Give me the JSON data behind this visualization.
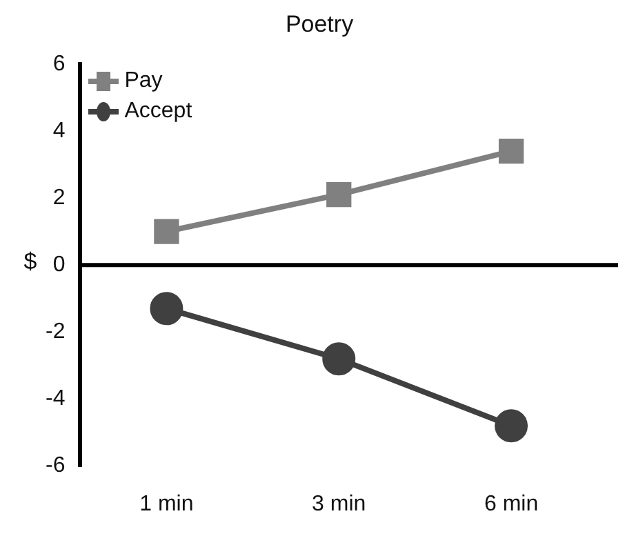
{
  "chart_data": {
    "type": "line",
    "title": "Poetry",
    "ylabel": "$",
    "categories": [
      "1 min",
      "3 min",
      "6 min"
    ],
    "series": [
      {
        "name": "Pay",
        "color": "#808080",
        "marker": "square",
        "values": [
          1.0,
          2.1,
          3.4
        ]
      },
      {
        "name": "Accept",
        "color": "#404040",
        "marker": "circle",
        "values": [
          -1.3,
          -2.8,
          -4.8
        ]
      }
    ],
    "ylim": [
      -6,
      6
    ],
    "yticks": [
      -6,
      -4,
      -2,
      0,
      2,
      4,
      6
    ],
    "grid": false,
    "legend": "top left",
    "ref_lines": [
      {
        "axis": "y",
        "value": 0,
        "color": "#000000"
      }
    ]
  }
}
